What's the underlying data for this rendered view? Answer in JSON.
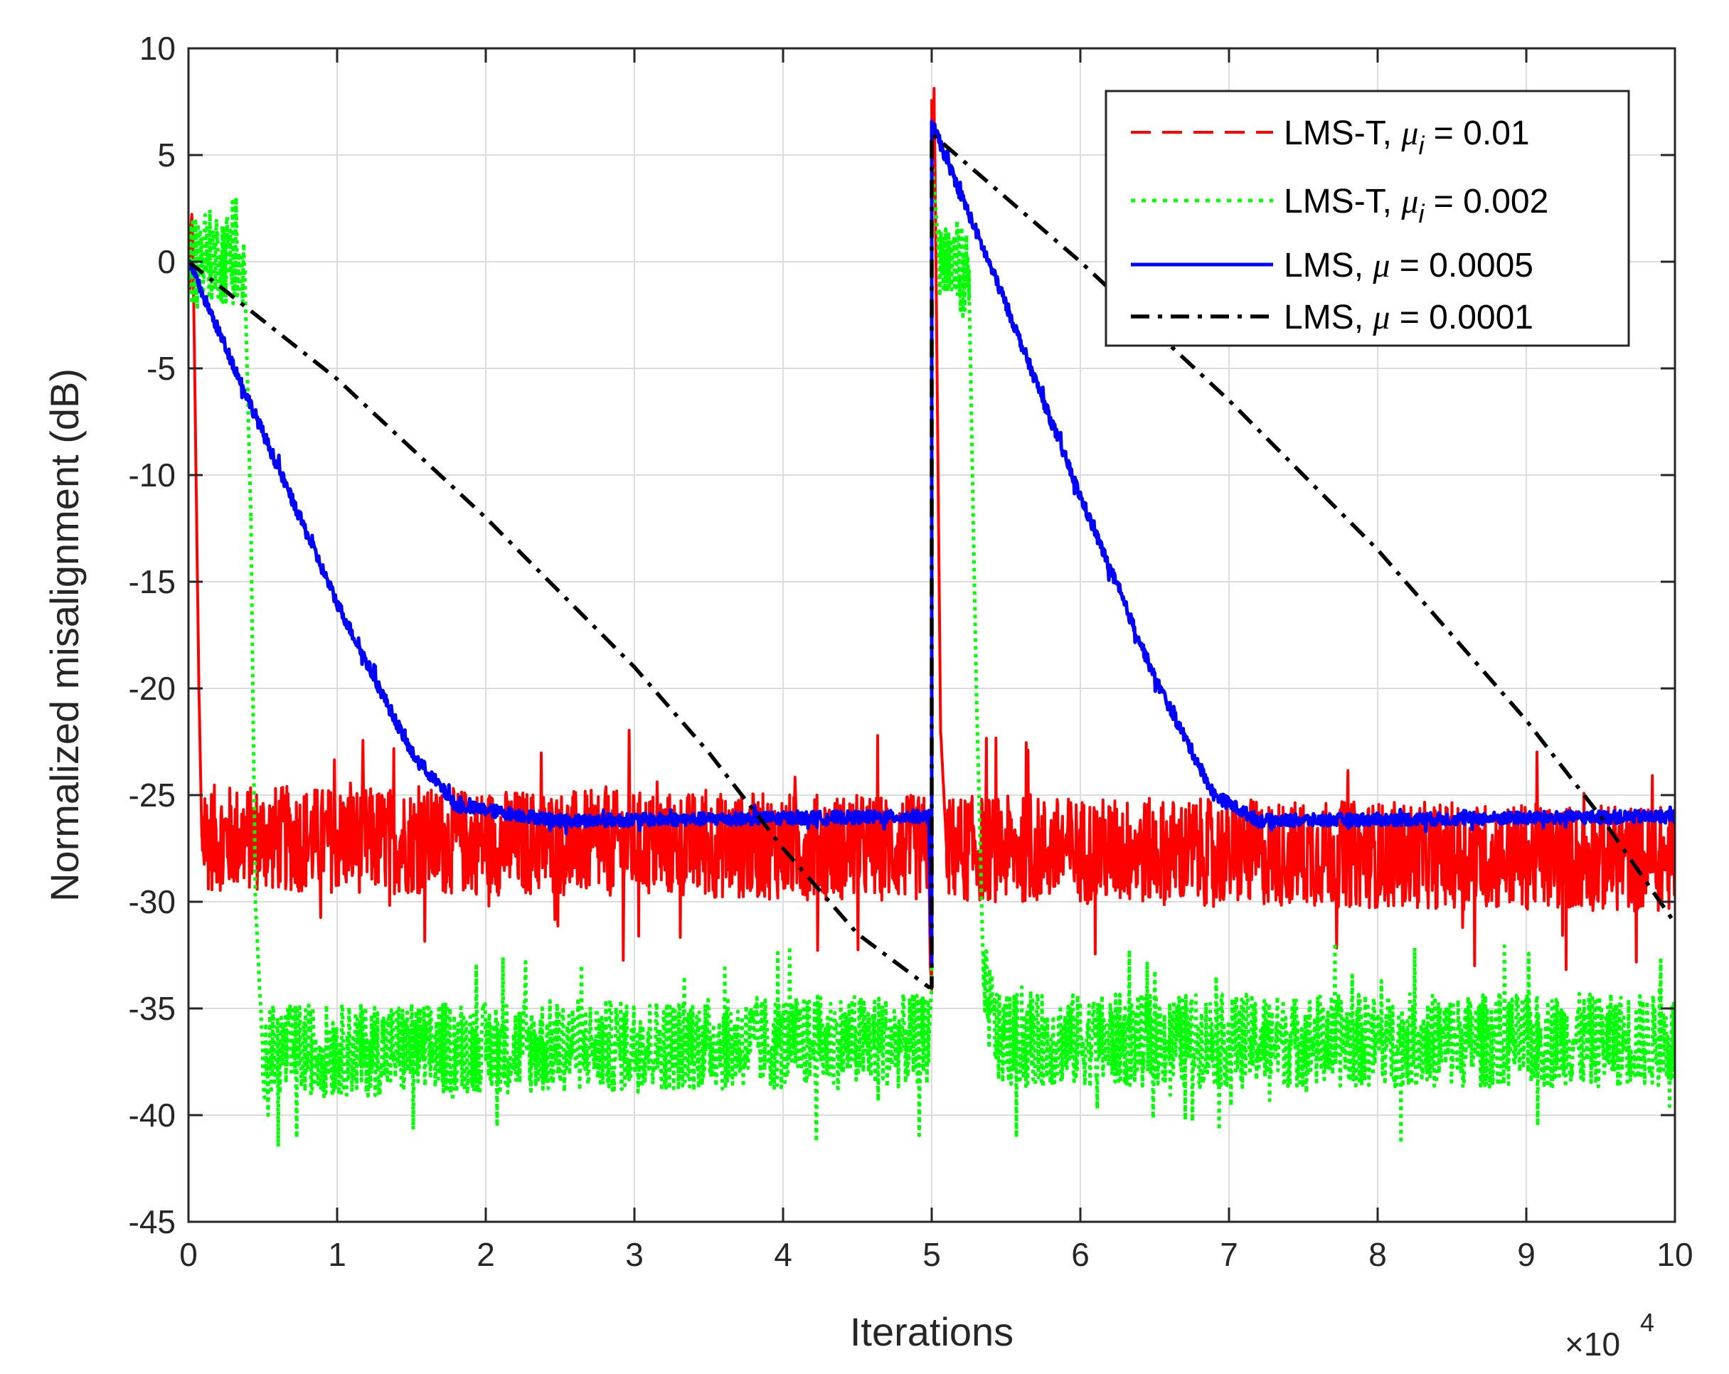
{
  "chart_data": {
    "type": "line",
    "title": "",
    "xlabel": "Iterations",
    "ylabel": "Normalized misalignment (dB)",
    "x_multiplier_label": "×10",
    "x_multiplier_exponent": "4",
    "xlim": [
      0,
      10
    ],
    "ylim": [
      -45,
      10
    ],
    "xticks": [
      0,
      1,
      2,
      3,
      4,
      5,
      6,
      7,
      8,
      9,
      10
    ],
    "yticks": [
      10,
      5,
      0,
      -5,
      -10,
      -15,
      -20,
      -25,
      -30,
      -35,
      -40,
      -45
    ],
    "xtick_labels": [
      "0",
      "1",
      "2",
      "3",
      "4",
      "5",
      "6",
      "7",
      "8",
      "9",
      "10"
    ],
    "ytick_labels": [
      "10",
      "5",
      "0",
      "-5",
      "-10",
      "-15",
      "-20",
      "-25",
      "-30",
      "-35",
      "-40",
      "-45"
    ],
    "grid": true,
    "legend_position": "top-right",
    "series": [
      {
        "name": "LMS-T, μ_i = 0.01",
        "legend_prefix": "LMS-T, ",
        "legend_symbol": "μ",
        "legend_subscript": "i",
        "legend_suffix": " = 0.01",
        "color": "#ff0000",
        "style": "dashed",
        "noise_amplitude": 2.5,
        "points": [
          [
            0,
            0
          ],
          [
            0.03,
            1
          ],
          [
            0.07,
            -20
          ],
          [
            0.09,
            -27
          ],
          [
            4.98,
            -27.5
          ],
          [
            4.99,
            -33
          ],
          [
            5.0,
            -34
          ],
          [
            5.0,
            6
          ],
          [
            5.02,
            6
          ],
          [
            5.06,
            -22
          ],
          [
            5.1,
            -27.5
          ],
          [
            10,
            -28
          ]
        ]
      },
      {
        "name": "LMS-T, μ_i = 0.002",
        "legend_prefix": "LMS-T, ",
        "legend_symbol": "μ",
        "legend_subscript": "i",
        "legend_suffix": " = 0.002",
        "color": "#00ff00",
        "style": "dotted",
        "noise_amplitude": 2.2,
        "points": [
          [
            0,
            0
          ],
          [
            0.1,
            0.3
          ],
          [
            0.3,
            0.2
          ],
          [
            0.38,
            -1
          ],
          [
            0.42,
            -12
          ],
          [
            0.45,
            -30
          ],
          [
            0.5,
            -37
          ],
          [
            4.98,
            -36.5
          ],
          [
            5.0,
            -34
          ],
          [
            5.0,
            5
          ],
          [
            5.05,
            0.2
          ],
          [
            5.25,
            -0.5
          ],
          [
            5.3,
            -20
          ],
          [
            5.35,
            -34
          ],
          [
            5.45,
            -36.5
          ],
          [
            10,
            -36.5
          ]
        ]
      },
      {
        "name": "LMS, μ = 0.0005",
        "legend_prefix": "LMS, ",
        "legend_symbol": "μ",
        "legend_subscript": "",
        "legend_suffix": " = 0.0005",
        "color": "#0000ff",
        "style": "solid",
        "noise_amplitude": 0.3,
        "points": [
          [
            0,
            0
          ],
          [
            0.5,
            -8
          ],
          [
            1.0,
            -16
          ],
          [
            1.5,
            -23
          ],
          [
            1.8,
            -25.5
          ],
          [
            2.5,
            -26.2
          ],
          [
            4.98,
            -26
          ],
          [
            5.0,
            -33
          ],
          [
            5.0,
            6.5
          ],
          [
            5.5,
            -2
          ],
          [
            6.0,
            -11
          ],
          [
            6.5,
            -19.5
          ],
          [
            6.9,
            -25
          ],
          [
            7.2,
            -26.2
          ],
          [
            10,
            -26
          ]
        ]
      },
      {
        "name": "LMS, μ = 0.0001",
        "legend_prefix": "LMS, ",
        "legend_symbol": "μ",
        "legend_subscript": "",
        "legend_suffix": " = 0.0001",
        "color": "#000000",
        "style": "dashdot",
        "noise_amplitude": 0,
        "points": [
          [
            0,
            0
          ],
          [
            1,
            -5.5
          ],
          [
            2,
            -12
          ],
          [
            3,
            -19
          ],
          [
            3.5,
            -23
          ],
          [
            4,
            -27.5
          ],
          [
            4.5,
            -31.5
          ],
          [
            4.98,
            -34
          ],
          [
            5.0,
            -34
          ],
          [
            5.0,
            6
          ],
          [
            6,
            0
          ],
          [
            7,
            -6.5
          ],
          [
            8,
            -13.5
          ],
          [
            9,
            -21.5
          ],
          [
            9.5,
            -26
          ],
          [
            10,
            -31
          ]
        ]
      }
    ]
  }
}
